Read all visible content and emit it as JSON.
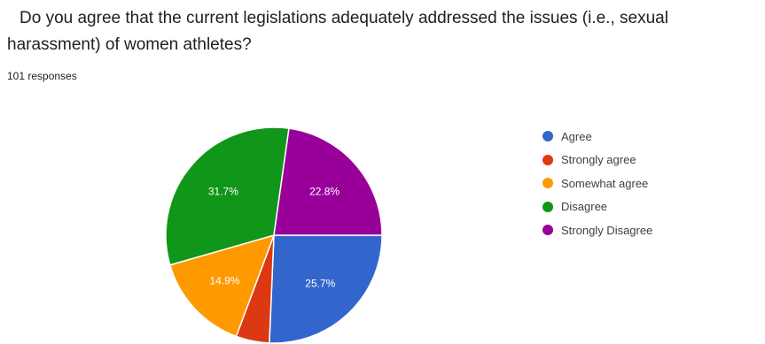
{
  "question": "Do you agree that the current legislations adequately addressed the issues (i.e., sexual harassment) of women athletes?",
  "responses_label": "101 responses",
  "chart_data": {
    "type": "pie",
    "title": "",
    "legend_position": "right",
    "slices": [
      {
        "label": "Agree",
        "percent": 25.7,
        "value_label": "25.7%",
        "color": "#3366cc"
      },
      {
        "label": "Strongly agree",
        "percent": 5.0,
        "value_label": "",
        "color": "#dc3912"
      },
      {
        "label": "Somewhat agree",
        "percent": 14.9,
        "value_label": "14.9%",
        "color": "#ff9900"
      },
      {
        "label": "Disagree",
        "percent": 31.7,
        "value_label": "31.7%",
        "color": "#109618"
      },
      {
        "label": "Strongly Disagree",
        "percent": 22.8,
        "value_label": "22.8%",
        "color": "#990099"
      }
    ]
  }
}
